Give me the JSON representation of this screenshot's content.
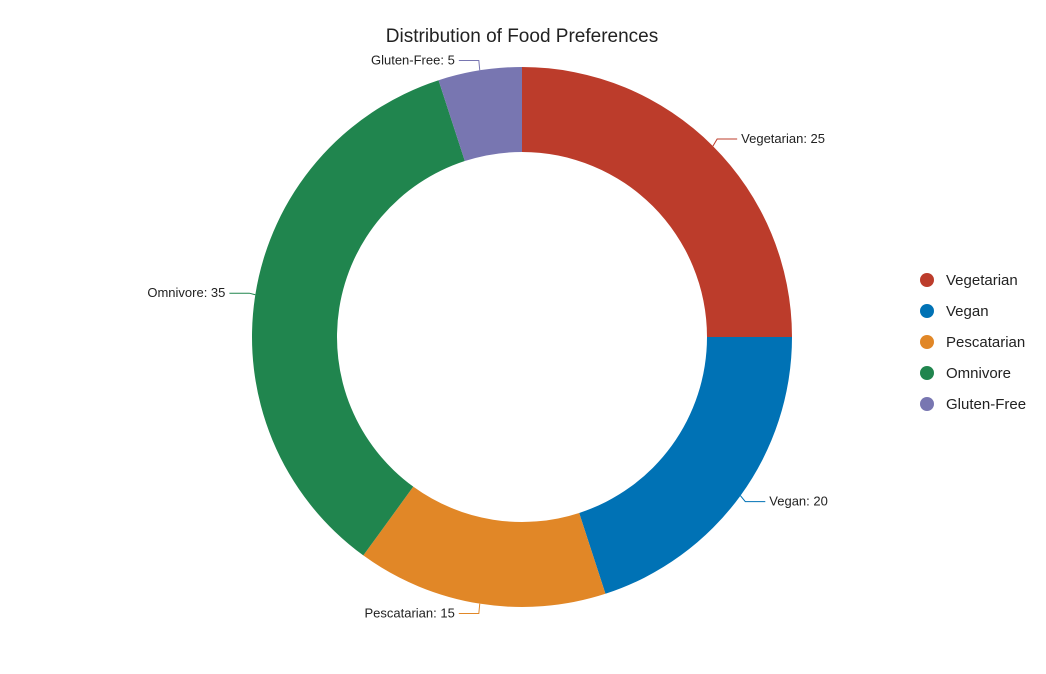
{
  "chart_data": {
    "type": "pie",
    "variant": "donut",
    "title": "Distribution of Food Preferences",
    "categories": [
      "Vegetarian",
      "Vegan",
      "Pescatarian",
      "Omnivore",
      "Gluten-Free"
    ],
    "values": [
      25,
      20,
      15,
      35,
      5
    ],
    "colors": [
      "#bc3c2b",
      "#0072b5",
      "#e18727",
      "#20854e",
      "#7876b1"
    ],
    "data_labels": [
      "Vegetarian: 25",
      "Vegan: 20",
      "Pescatarian: 15",
      "Omnivore: 35",
      "Gluten-Free: 5"
    ],
    "start_angle": "12 o'clock",
    "direction": "clockwise",
    "legend_position": "right"
  }
}
